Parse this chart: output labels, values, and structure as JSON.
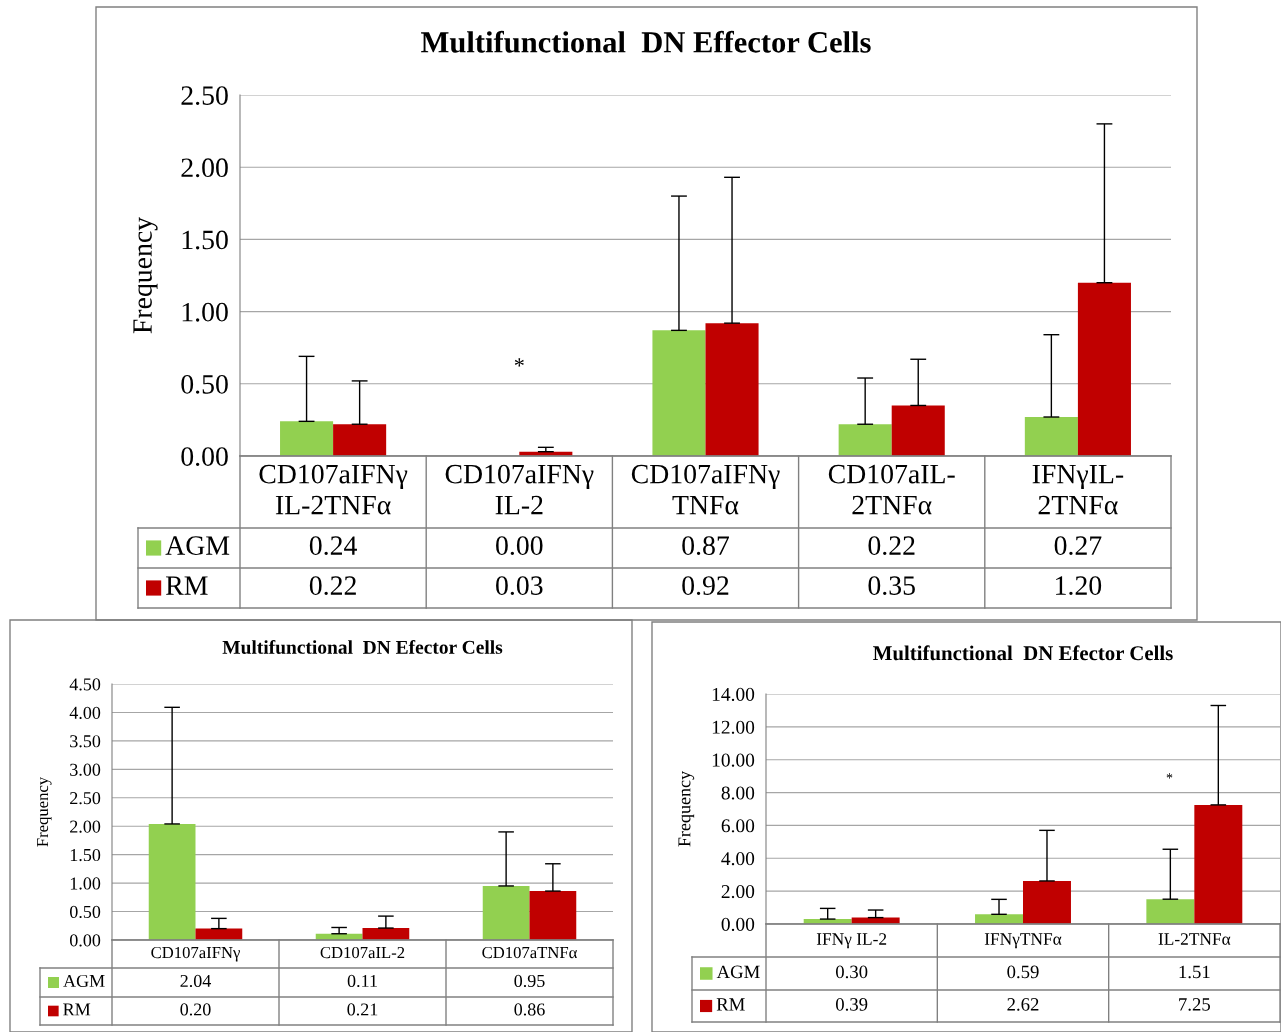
{
  "chart_data": [
    {
      "type": "bar",
      "title": "Multifunctional  DN Effector Cells",
      "ylabel": "Frequency",
      "categories": [
        "CD107aIFNγ\nIL-2TNFα",
        "CD107aIFNγ\nIL-2",
        "CD107aIFNγ\nTNFα",
        "CD107aIL-\n2TNFα",
        "IFNγIL-\n2TNFα"
      ],
      "series": [
        {
          "name": "AGM",
          "color": "#92d050",
          "values": [
            0.24,
            0.0,
            0.87,
            0.22,
            0.27
          ],
          "errors": [
            [
              0.24,
              0.69
            ],
            null,
            [
              0.87,
              1.8
            ],
            [
              0.22,
              0.54
            ],
            [
              0.27,
              0.84
            ]
          ],
          "value_labels": [
            "0.24",
            "0.00",
            "0.87",
            "0.22",
            "0.27"
          ]
        },
        {
          "name": "RM",
          "color": "#c00000",
          "values": [
            0.22,
            0.03,
            0.92,
            0.35,
            1.2
          ],
          "errors": [
            [
              0.22,
              0.52
            ],
            [
              0.03,
              0.06
            ],
            [
              0.92,
              1.93
            ],
            [
              0.35,
              0.67
            ],
            [
              1.2,
              2.3
            ]
          ],
          "value_labels": [
            "0.22",
            "0.03",
            "0.92",
            "0.35",
            "1.20"
          ]
        }
      ],
      "ylim": [
        0,
        2.5
      ],
      "yticks": [
        {
          "value": 0,
          "label": "0.00"
        },
        {
          "value": 0.5,
          "label": "0.50"
        },
        {
          "value": 1,
          "label": "1.00"
        },
        {
          "value": 1.5,
          "label": "1.50"
        },
        {
          "value": 2,
          "label": "2.00"
        },
        {
          "value": 2.5,
          "label": "2.50"
        }
      ],
      "grid": "y",
      "legend": "bottom",
      "annotations": [
        "*"
      ]
    },
    {
      "type": "bar",
      "title": "Multifunctional  DN Efector Cells",
      "ylabel": "Frequency",
      "categories": [
        "CD107aIFNγ",
        "CD107aIL-2",
        "CD107aTNFα"
      ],
      "series": [
        {
          "name": "AGM",
          "color": "#92d050",
          "values": [
            2.04,
            0.11,
            0.95
          ],
          "errors": [
            [
              2.04,
              4.09
            ],
            [
              0.11,
              0.22
            ],
            [
              0.95,
              1.9
            ]
          ],
          "value_labels": [
            "2.04",
            "0.11",
            "0.95"
          ]
        },
        {
          "name": "RM",
          "color": "#c00000",
          "values": [
            0.2,
            0.21,
            0.86
          ],
          "errors": [
            [
              0.2,
              0.38
            ],
            [
              0.21,
              0.42
            ],
            [
              0.86,
              1.34
            ]
          ],
          "value_labels": [
            "0.20",
            "0.21",
            "0.86"
          ]
        }
      ],
      "ylim": [
        0,
        4.5
      ],
      "yticks": [
        {
          "value": 0,
          "label": "0.00"
        },
        {
          "value": 0.5,
          "label": "0.50"
        },
        {
          "value": 1,
          "label": "1.00"
        },
        {
          "value": 1.5,
          "label": "1.50"
        },
        {
          "value": 2,
          "label": "2.00"
        },
        {
          "value": 2.5,
          "label": "2.50"
        },
        {
          "value": 3,
          "label": "3.00"
        },
        {
          "value": 3.5,
          "label": "3.50"
        },
        {
          "value": 4,
          "label": "4.00"
        },
        {
          "value": 4.5,
          "label": "4.50"
        }
      ],
      "grid": "y",
      "legend": "bottom"
    },
    {
      "type": "bar",
      "title": "Multifunctional  DN Efector Cells",
      "ylabel": "Frequency",
      "categories": [
        "IFNγ IL-2",
        "IFNγTNFα",
        "IL-2TNFα"
      ],
      "series": [
        {
          "name": "AGM",
          "color": "#92d050",
          "values": [
            0.3,
            0.59,
            1.51
          ],
          "errors": [
            [
              0.3,
              0.95
            ],
            [
              0.59,
              1.5
            ],
            [
              1.51,
              4.55
            ]
          ],
          "value_labels": [
            "0.30",
            "0.59",
            "1.51"
          ]
        },
        {
          "name": "RM",
          "color": "#c00000",
          "values": [
            0.39,
            2.62,
            7.25
          ],
          "errors": [
            [
              0.39,
              0.85
            ],
            [
              2.62,
              5.7
            ],
            [
              7.25,
              13.3
            ]
          ],
          "value_labels": [
            "0.39",
            "2.62",
            "7.25"
          ]
        }
      ],
      "ylim": [
        0,
        14
      ],
      "yticks": [
        {
          "value": 0,
          "label": "0.00"
        },
        {
          "value": 2,
          "label": "2.00"
        },
        {
          "value": 4,
          "label": "4.00"
        },
        {
          "value": 6,
          "label": "6.00"
        },
        {
          "value": 8,
          "label": "8.00"
        },
        {
          "value": 10,
          "label": "10.00"
        },
        {
          "value": 12,
          "label": "12.00"
        },
        {
          "value": 14,
          "label": "14.00"
        }
      ],
      "grid": "y",
      "legend": "bottom",
      "annotations": [
        "*"
      ]
    }
  ]
}
